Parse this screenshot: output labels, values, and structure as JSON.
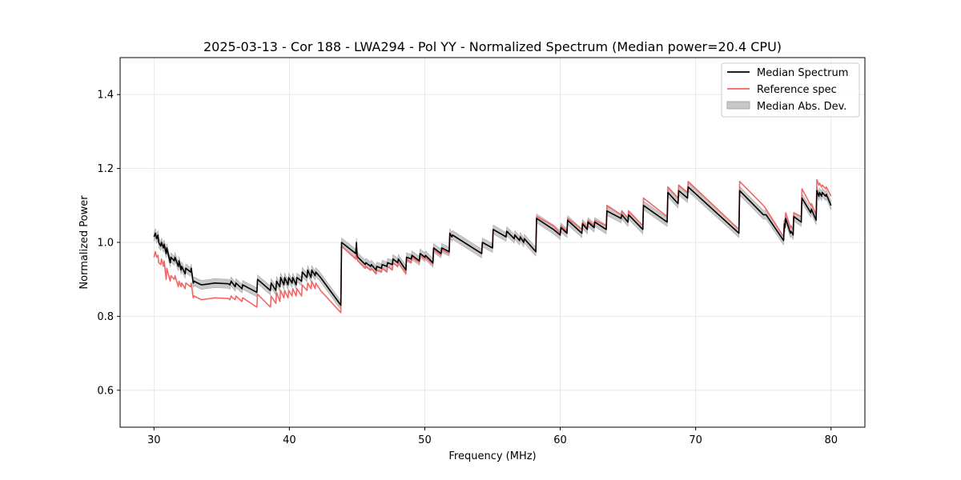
{
  "chart_data": {
    "type": "line",
    "title": "2025-03-13 - Cor 188 - LWA294 - Pol YY - Normalized Spectrum (Median power=20.4 CPU)",
    "xlabel": "Frequency (MHz)",
    "ylabel": "Normalized Power",
    "xlim": [
      27.5,
      82.5
    ],
    "ylim": [
      0.5,
      1.5
    ],
    "xticks": [
      30,
      40,
      50,
      60,
      70,
      80
    ],
    "yticks": [
      0.6,
      0.8,
      1.0,
      1.2,
      1.4
    ],
    "grid": true,
    "legend_position": "top-right",
    "legend": [
      "Median Spectrum",
      "Reference spec",
      "Median Abs. Dev."
    ],
    "colors": {
      "median": "#000000",
      "reference": "#f26666",
      "mad": "#c8c8c8",
      "mad_edge": "#a8a8a8"
    },
    "mad_halfwidth": 0.012,
    "series": [
      {
        "name": "Median Spectrum",
        "x": [
          30.0,
          30.1,
          30.2,
          30.3,
          30.35,
          30.5,
          30.55,
          30.7,
          30.75,
          30.9,
          30.95,
          31.2,
          31.25,
          31.5,
          31.55,
          31.8,
          31.85,
          32.0,
          32.05,
          32.3,
          32.35,
          32.7,
          32.75,
          32.9,
          32.95,
          33.5,
          34.5,
          35.5,
          35.6,
          35.7,
          35.8,
          36.0,
          36.05,
          36.5,
          36.55,
          37.6,
          37.65,
          38.6,
          38.65,
          39.0,
          39.05,
          39.3,
          39.35,
          39.6,
          39.65,
          39.9,
          39.95,
          40.2,
          40.25,
          40.5,
          40.55,
          40.9,
          40.95,
          41.3,
          41.35,
          41.6,
          41.65,
          41.9,
          41.95,
          42.3,
          43.8,
          43.85,
          44.9,
          44.95,
          45.0,
          45.05,
          45.6,
          45.65,
          46.0,
          46.05,
          46.4,
          46.45,
          46.8,
          46.85,
          47.2,
          47.25,
          47.6,
          47.65,
          48.0,
          48.05,
          48.6,
          48.65,
          49.0,
          49.05,
          49.6,
          49.65,
          50.0,
          50.05,
          50.6,
          50.65,
          51.2,
          51.25,
          51.8,
          51.85,
          52.0,
          52.05,
          54.2,
          54.25,
          55.0,
          55.05,
          56.0,
          56.05,
          56.6,
          56.65,
          57.0,
          57.05,
          57.3,
          57.35,
          58.2,
          58.25,
          59.5,
          60.0,
          60.05,
          60.5,
          60.55,
          61.6,
          61.65,
          62.0,
          62.05,
          62.5,
          62.55,
          63.4,
          63.45,
          64.5,
          64.55,
          65.0,
          65.05,
          66.1,
          66.15,
          67.9,
          67.95,
          68.7,
          68.75,
          69.4,
          69.45,
          73.2,
          73.25,
          75.0,
          75.2,
          76.5,
          76.55,
          76.6,
          76.65,
          77.0,
          77.05,
          77.2,
          77.25,
          77.8,
          77.85,
          78.5,
          78.55,
          78.9,
          78.95,
          79.1,
          79.15,
          79.3,
          79.35,
          79.6,
          79.65,
          80.0
        ],
        "y": [
          1.015,
          1.025,
          1.01,
          1.02,
          1.0,
          0.99,
          1.0,
          0.985,
          0.995,
          0.97,
          0.985,
          0.945,
          0.96,
          0.95,
          0.96,
          0.935,
          0.95,
          0.925,
          0.935,
          0.915,
          0.93,
          0.92,
          0.93,
          0.89,
          0.895,
          0.885,
          0.89,
          0.888,
          0.885,
          0.895,
          0.89,
          0.88,
          0.89,
          0.875,
          0.885,
          0.865,
          0.9,
          0.87,
          0.89,
          0.87,
          0.895,
          0.88,
          0.905,
          0.885,
          0.905,
          0.885,
          0.905,
          0.89,
          0.905,
          0.885,
          0.905,
          0.895,
          0.92,
          0.905,
          0.925,
          0.905,
          0.925,
          0.91,
          0.92,
          0.905,
          0.83,
          1.0,
          0.97,
          1.0,
          0.965,
          0.96,
          0.94,
          0.945,
          0.935,
          0.94,
          0.925,
          0.935,
          0.93,
          0.94,
          0.935,
          0.945,
          0.94,
          0.955,
          0.945,
          0.955,
          0.925,
          0.96,
          0.955,
          0.965,
          0.95,
          0.97,
          0.96,
          0.965,
          0.945,
          0.985,
          0.97,
          0.985,
          0.975,
          1.025,
          1.015,
          1.02,
          0.97,
          1.0,
          0.985,
          1.035,
          1.015,
          1.03,
          1.01,
          1.02,
          1.005,
          1.015,
          1.0,
          1.01,
          0.975,
          1.065,
          1.035,
          1.02,
          1.04,
          1.025,
          1.06,
          1.025,
          1.05,
          1.035,
          1.055,
          1.04,
          1.055,
          1.035,
          1.085,
          1.065,
          1.075,
          1.055,
          1.075,
          1.035,
          1.1,
          1.055,
          1.135,
          1.105,
          1.14,
          1.12,
          1.15,
          1.025,
          1.14,
          1.075,
          1.075,
          1.005,
          1.05,
          1.04,
          1.065,
          1.025,
          1.03,
          1.02,
          1.07,
          1.055,
          1.12,
          1.08,
          1.09,
          1.06,
          1.14,
          1.125,
          1.135,
          1.125,
          1.135,
          1.125,
          1.13,
          1.1
        ]
      },
      {
        "name": "Reference spec",
        "x": [
          30.0,
          30.1,
          30.2,
          30.3,
          30.35,
          30.5,
          30.55,
          30.7,
          30.75,
          30.9,
          30.95,
          31.2,
          31.25,
          31.5,
          31.55,
          31.8,
          31.85,
          32.0,
          32.05,
          32.3,
          32.35,
          32.7,
          32.75,
          32.9,
          32.95,
          33.5,
          34.5,
          35.5,
          35.6,
          35.7,
          35.8,
          36.0,
          36.05,
          36.5,
          36.55,
          37.6,
          37.65,
          38.6,
          38.65,
          39.0,
          39.05,
          39.3,
          39.35,
          39.6,
          39.65,
          39.9,
          39.95,
          40.2,
          40.25,
          40.5,
          40.55,
          40.9,
          40.95,
          41.3,
          41.35,
          41.6,
          41.65,
          41.9,
          41.95,
          42.3,
          43.8,
          43.85,
          44.9,
          44.95,
          45.0,
          45.05,
          45.6,
          45.65,
          46.0,
          46.05,
          46.4,
          46.45,
          46.8,
          46.85,
          47.2,
          47.25,
          47.6,
          47.65,
          48.0,
          48.05,
          48.6,
          48.65,
          49.0,
          49.05,
          49.6,
          49.65,
          50.0,
          50.05,
          50.6,
          50.65,
          51.2,
          51.25,
          51.8,
          51.85,
          52.0,
          52.05,
          54.2,
          54.25,
          55.0,
          55.05,
          56.0,
          56.05,
          56.6,
          56.65,
          57.0,
          57.05,
          57.3,
          57.35,
          58.2,
          58.25,
          59.5,
          60.0,
          60.05,
          60.5,
          60.55,
          61.6,
          61.65,
          62.0,
          62.05,
          62.5,
          62.55,
          63.4,
          63.45,
          64.5,
          64.55,
          65.0,
          65.05,
          66.1,
          66.15,
          67.9,
          67.95,
          68.7,
          68.75,
          69.4,
          69.45,
          73.2,
          73.25,
          75.0,
          75.2,
          76.5,
          76.55,
          76.6,
          76.65,
          77.0,
          77.05,
          77.2,
          77.25,
          77.8,
          77.85,
          78.5,
          78.55,
          78.9,
          78.95,
          79.1,
          79.15,
          79.3,
          79.35,
          79.6,
          79.65,
          80.0
        ],
        "y": [
          0.96,
          0.975,
          0.96,
          0.965,
          0.945,
          0.94,
          0.955,
          0.935,
          0.95,
          0.9,
          0.93,
          0.895,
          0.91,
          0.9,
          0.91,
          0.88,
          0.895,
          0.88,
          0.89,
          0.875,
          0.89,
          0.88,
          0.89,
          0.85,
          0.855,
          0.845,
          0.85,
          0.848,
          0.845,
          0.855,
          0.85,
          0.845,
          0.855,
          0.84,
          0.85,
          0.825,
          0.86,
          0.825,
          0.855,
          0.835,
          0.865,
          0.84,
          0.87,
          0.85,
          0.87,
          0.85,
          0.87,
          0.855,
          0.875,
          0.855,
          0.875,
          0.855,
          0.885,
          0.87,
          0.89,
          0.875,
          0.895,
          0.875,
          0.89,
          0.87,
          0.81,
          0.99,
          0.955,
          0.985,
          0.955,
          0.95,
          0.93,
          0.935,
          0.925,
          0.93,
          0.915,
          0.925,
          0.92,
          0.93,
          0.92,
          0.935,
          0.925,
          0.945,
          0.935,
          0.945,
          0.915,
          0.955,
          0.945,
          0.96,
          0.945,
          0.965,
          0.955,
          0.96,
          0.94,
          0.98,
          0.965,
          0.98,
          0.97,
          1.025,
          1.015,
          1.02,
          0.97,
          1.0,
          0.985,
          1.035,
          1.015,
          1.03,
          1.01,
          1.02,
          1.005,
          1.015,
          1.0,
          1.01,
          0.975,
          1.07,
          1.045,
          1.025,
          1.045,
          1.03,
          1.065,
          1.035,
          1.055,
          1.04,
          1.06,
          1.045,
          1.06,
          1.045,
          1.1,
          1.075,
          1.085,
          1.065,
          1.085,
          1.045,
          1.12,
          1.07,
          1.15,
          1.12,
          1.155,
          1.135,
          1.165,
          1.035,
          1.165,
          1.1,
          1.09,
          1.015,
          1.06,
          1.055,
          1.08,
          1.04,
          1.045,
          1.035,
          1.08,
          1.07,
          1.145,
          1.1,
          1.105,
          1.075,
          1.17,
          1.155,
          1.16,
          1.15,
          1.155,
          1.145,
          1.15,
          1.125
        ]
      }
    ]
  }
}
